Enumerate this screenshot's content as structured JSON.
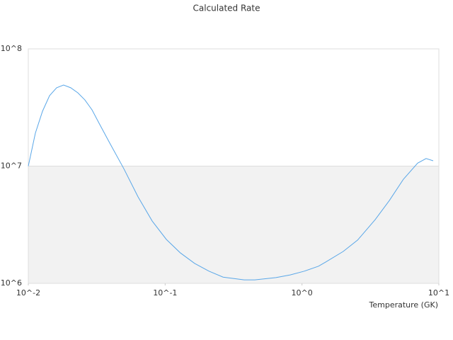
{
  "chart_data": {
    "type": "line",
    "title": "Calculated Rate",
    "x_label": "Temperature (GK)",
    "log_x": true,
    "log_y": true,
    "grid": true,
    "xlim": [
      0.01,
      10
    ],
    "xticks": [
      {
        "value": 0.01,
        "label": "10^-2"
      },
      {
        "value": 0.1,
        "label": "10^-1"
      },
      {
        "value": 1,
        "label": "10^0"
      },
      {
        "value": 10,
        "label": "10^1"
      }
    ],
    "ylim": [
      1000000,
      100000000
    ],
    "yticks": [
      {
        "value": 1000000,
        "label": "10^6"
      },
      {
        "value": 10000000,
        "label": "10^7"
      },
      {
        "value": 100000000,
        "label": "10^8"
      }
    ],
    "series": [
      {
        "color": "#5aa7e8",
        "x": [
          0.01,
          0.01126,
          0.0127,
          0.0143,
          0.0161,
          0.0181,
          0.0204,
          0.023,
          0.0259,
          0.0292,
          0.0329,
          0.0394,
          0.0499,
          0.0634,
          0.0804,
          0.102,
          0.129,
          0.164,
          0.209,
          0.265,
          0.378,
          0.452,
          0.646,
          0.82,
          1.04,
          1.32,
          1.49,
          2.0,
          2.55,
          3.43,
          4.35,
          5.51,
          7.0,
          8.07,
          9.09
        ],
        "values": [
          10000000,
          19100000,
          29400000,
          39900000,
          46600000,
          49200000,
          46600000,
          42200000,
          36700000,
          30200000,
          23200000,
          15700000,
          9500000,
          5460000,
          3400000,
          2370000,
          1820000,
          1480000,
          1270000,
          1130000,
          1070000,
          1070000,
          1120000,
          1180000,
          1270000,
          1400000,
          1520000,
          1870000,
          2340000,
          3500000,
          5090000,
          7730000,
          10600000,
          11600000,
          11100000
        ]
      }
    ]
  }
}
